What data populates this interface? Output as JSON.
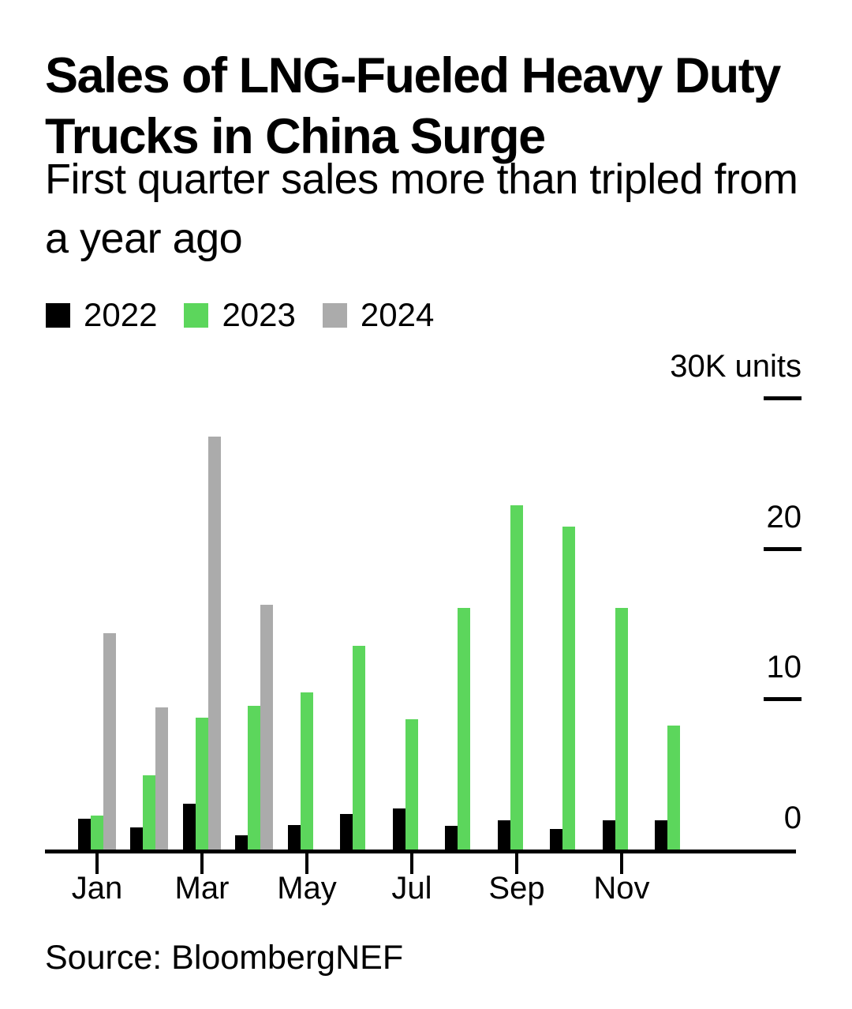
{
  "header": {
    "title": "Sales of LNG-Fueled Heavy Duty Trucks in China Surge",
    "subtitle": "First quarter sales more than tripled from a year ago"
  },
  "legend": {
    "items": [
      {
        "label": "2022",
        "color": "#000000"
      },
      {
        "label": "2023",
        "color": "#5CD65C"
      },
      {
        "label": "2024",
        "color": "#ABABAB"
      }
    ]
  },
  "y_axis": {
    "unit_label": "30K units",
    "tick_values": [
      30,
      20,
      10,
      0
    ]
  },
  "chart_data": {
    "type": "bar",
    "title": "Sales of LNG-Fueled Heavy Duty Trucks in China Surge",
    "subtitle": "First quarter sales more than tripled from a year ago",
    "ylabel": "30K units",
    "unit": "thousand units",
    "categories": [
      "Jan",
      "Feb",
      "Mar",
      "Apr",
      "May",
      "Jun",
      "Jul",
      "Aug",
      "Sep",
      "Oct",
      "Nov",
      "Dec"
    ],
    "x_tick_labels": [
      "Jan",
      "Mar",
      "May",
      "Jul",
      "Sep",
      "Nov"
    ],
    "ylim": [
      0,
      30
    ],
    "yticks": [
      0,
      10,
      20,
      30
    ],
    "grid": false,
    "legend_position": "top-left",
    "series": [
      {
        "name": "2022",
        "color": "#000000",
        "values": [
          2.1,
          1.5,
          3.1,
          1.0,
          1.7,
          2.4,
          2.8,
          1.6,
          2.0,
          1.4,
          2.0,
          2.0
        ]
      },
      {
        "name": "2023",
        "color": "#5CD65C",
        "values": [
          2.3,
          5.0,
          8.8,
          9.6,
          10.5,
          13.6,
          8.7,
          16.1,
          22.9,
          21.5,
          16.1,
          8.3
        ]
      },
      {
        "name": "2024",
        "color": "#ABABAB",
        "values": [
          14.4,
          9.5,
          27.5,
          16.3,
          null,
          null,
          null,
          null,
          null,
          null,
          null,
          null
        ]
      }
    ]
  },
  "source": "Source: BloombergNEF"
}
